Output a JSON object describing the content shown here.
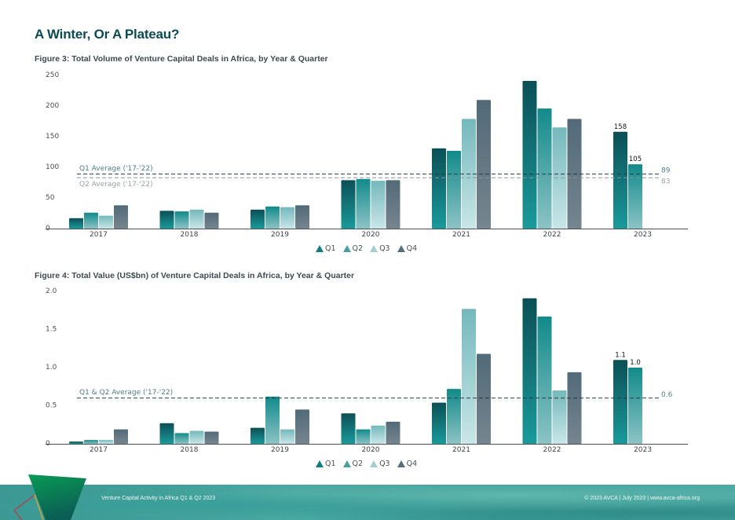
{
  "page": {
    "title": "A Winter, Or A Plateau?"
  },
  "legend": {
    "items": [
      {
        "label": "Q1",
        "color": "#0f7f82"
      },
      {
        "label": "Q2",
        "color": "#4a9fa0"
      },
      {
        "label": "Q3",
        "color": "#9fcfd1"
      },
      {
        "label": "Q4",
        "color": "#566f7d"
      }
    ]
  },
  "footer": {
    "left": "Venture Capital Activity in Africa Q1 & Q2 2023",
    "right": "© 2023 AVCA  |  July 2023  |  www.avca-africa.org"
  },
  "colors": {
    "q1_top": "#0b4f56",
    "q1_bottom": "#1a9a9b",
    "q2_top": "#128a8a",
    "q2_bottom": "#8cc3c5",
    "q3_top": "#74b8bc",
    "q3_bottom": "#c9e6e8",
    "q4_top": "#526a78",
    "q4_bottom": "#76858f",
    "title": "#0c4a52"
  },
  "chart_data": [
    {
      "type": "bar",
      "title": "Figure 3: Total Volume of Venture Capital Deals in Africa, by Year & Quarter",
      "xlabel": "",
      "ylabel": "",
      "categories": [
        "2017",
        "2018",
        "2019",
        "2020",
        "2021",
        "2022",
        "2023"
      ],
      "yticks": [
        "0",
        "50",
        "100",
        "150",
        "200",
        "250"
      ],
      "ylim": [
        0,
        250
      ],
      "grid": false,
      "legend_position": "bottom-center",
      "series": [
        {
          "name": "Q1",
          "values": [
            17,
            29,
            31,
            79,
            131,
            241,
            158
          ]
        },
        {
          "name": "Q2",
          "values": [
            26,
            28,
            36,
            81,
            127,
            196,
            105
          ]
        },
        {
          "name": "Q3",
          "values": [
            21,
            31,
            35,
            78,
            179,
            165,
            null
          ]
        },
        {
          "name": "Q4",
          "values": [
            38,
            26,
            38,
            79,
            210,
            179,
            null
          ]
        }
      ],
      "data_labels": [
        {
          "category": "2023",
          "series": "Q1",
          "text": "158"
        },
        {
          "category": "2023",
          "series": "Q2",
          "text": "105"
        }
      ],
      "reference_lines": [
        {
          "label": "Q1 Average ('17-'22)",
          "value": 89,
          "value_label": "89",
          "style": "dark"
        },
        {
          "label": "Q2 Average ('17-'22)",
          "value": 83,
          "value_label": "83",
          "style": "light"
        }
      ]
    },
    {
      "type": "bar",
      "title": "Figure 4: Total Value (US$bn) of Venture Capital Deals in Africa, by Year & Quarter",
      "xlabel": "",
      "ylabel": "",
      "categories": [
        "2017",
        "2018",
        "2019",
        "2020",
        "2021",
        "2022",
        "2023"
      ],
      "yticks": [
        "0",
        "0.5",
        "1.0",
        "1.5",
        "2.0"
      ],
      "ylim": [
        0,
        2.0
      ],
      "grid": false,
      "legend_position": "bottom-center",
      "series": [
        {
          "name": "Q1",
          "values": [
            0.03,
            0.27,
            0.21,
            0.4,
            0.54,
            1.91,
            1.1
          ]
        },
        {
          "name": "Q2",
          "values": [
            0.05,
            0.14,
            0.62,
            0.19,
            0.72,
            1.67,
            1.0
          ]
        },
        {
          "name": "Q3",
          "values": [
            0.05,
            0.17,
            0.19,
            0.24,
            1.77,
            0.7,
            null
          ]
        },
        {
          "name": "Q4",
          "values": [
            0.19,
            0.16,
            0.45,
            0.29,
            1.18,
            0.94,
            null
          ]
        }
      ],
      "data_labels": [
        {
          "category": "2023",
          "series": "Q1",
          "text": "1.1"
        },
        {
          "category": "2023",
          "series": "Q2",
          "text": "1.0"
        }
      ],
      "reference_lines": [
        {
          "label": "Q1 & Q2 Average ('17-'22)",
          "value": 0.6,
          "value_label": "0.6",
          "style": "dark"
        }
      ]
    }
  ]
}
